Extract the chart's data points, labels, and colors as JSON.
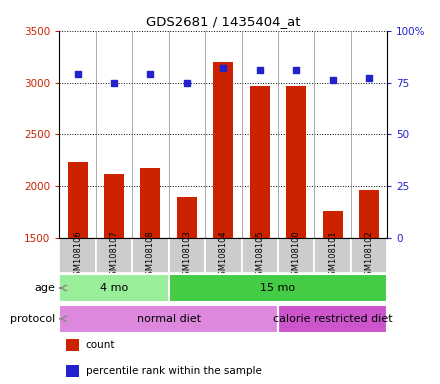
{
  "title": "GDS2681 / 1435404_at",
  "samples": [
    "GSM108106",
    "GSM108107",
    "GSM108108",
    "GSM108103",
    "GSM108104",
    "GSM108105",
    "GSM108100",
    "GSM108101",
    "GSM108102"
  ],
  "counts": [
    2230,
    2120,
    2175,
    1900,
    3200,
    2970,
    2970,
    1760,
    1960
  ],
  "percentile_ranks": [
    79,
    75,
    79,
    75,
    82,
    81,
    81,
    76,
    77
  ],
  "ylim_left": [
    1500,
    3500
  ],
  "ylim_right": [
    0,
    100
  ],
  "yticks_left": [
    1500,
    2000,
    2500,
    3000,
    3500
  ],
  "yticks_right": [
    0,
    25,
    50,
    75,
    100
  ],
  "bar_color": "#cc2200",
  "dot_color": "#2222cc",
  "bg_color": "#ffffff",
  "sample_box_color": "#cccccc",
  "age_groups": [
    {
      "label": "4 mo",
      "start": 0,
      "end": 3,
      "color": "#99ee99"
    },
    {
      "label": "15 mo",
      "start": 3,
      "end": 9,
      "color": "#44cc44"
    }
  ],
  "protocol_groups": [
    {
      "label": "normal diet",
      "start": 0,
      "end": 6,
      "color": "#dd88dd"
    },
    {
      "label": "calorie restricted diet",
      "start": 6,
      "end": 9,
      "color": "#cc55cc"
    }
  ],
  "legend_items": [
    {
      "color": "#cc2200",
      "label": "count"
    },
    {
      "color": "#2222cc",
      "label": "percentile rank within the sample"
    }
  ],
  "left_axis_color": "#cc2200",
  "right_axis_color": "#2222cc"
}
